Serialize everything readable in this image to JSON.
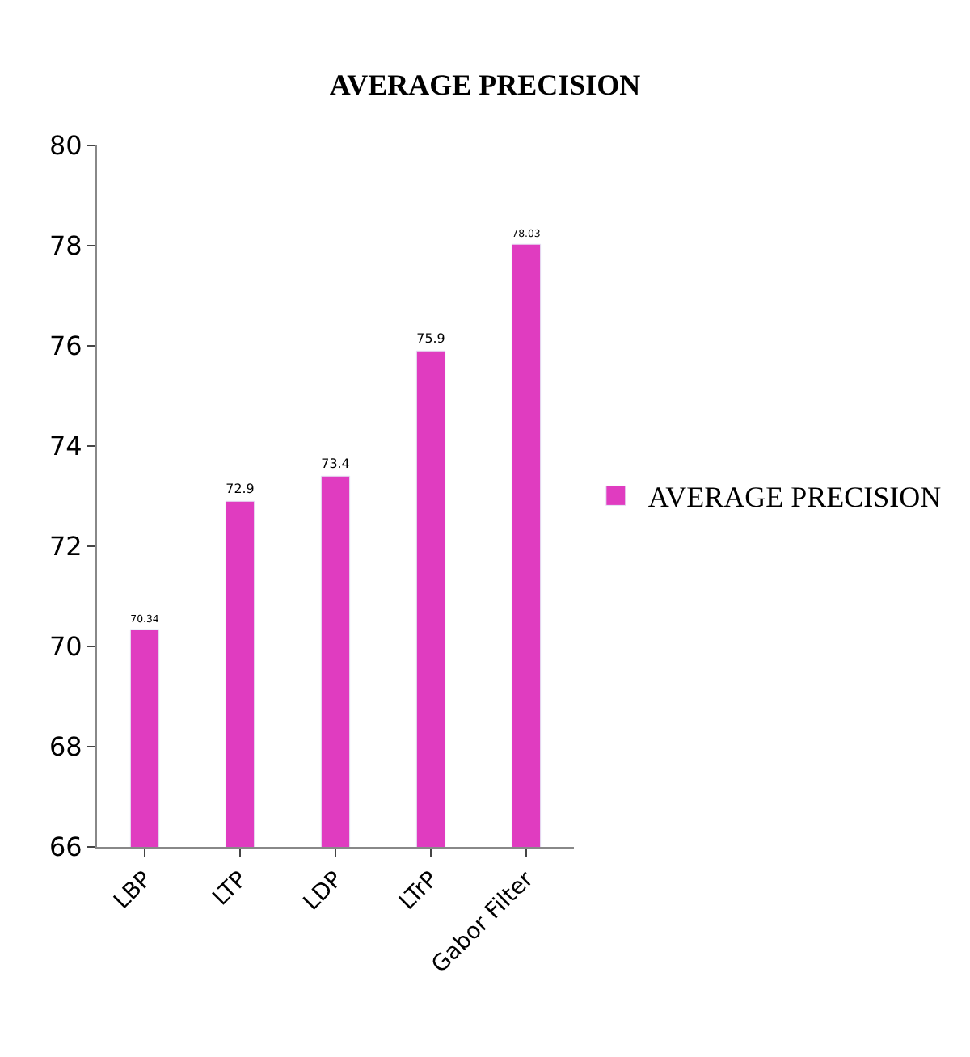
{
  "chart_data": {
    "type": "bar",
    "title": "AVERAGE PRECISION",
    "categories": [
      "LBP",
      "LTP",
      "LDP",
      "LTrP",
      "Gabor Filter"
    ],
    "series": [
      {
        "name": "AVERAGE PRECISION",
        "color": "#e03cc0",
        "values": [
          70.34,
          72.9,
          73.4,
          75.9,
          78.03
        ]
      }
    ],
    "ylim": [
      66,
      80
    ],
    "yticks": [
      66,
      68,
      70,
      72,
      74,
      76,
      78,
      80
    ],
    "data_labels": true,
    "grid": false,
    "legend": "right"
  }
}
